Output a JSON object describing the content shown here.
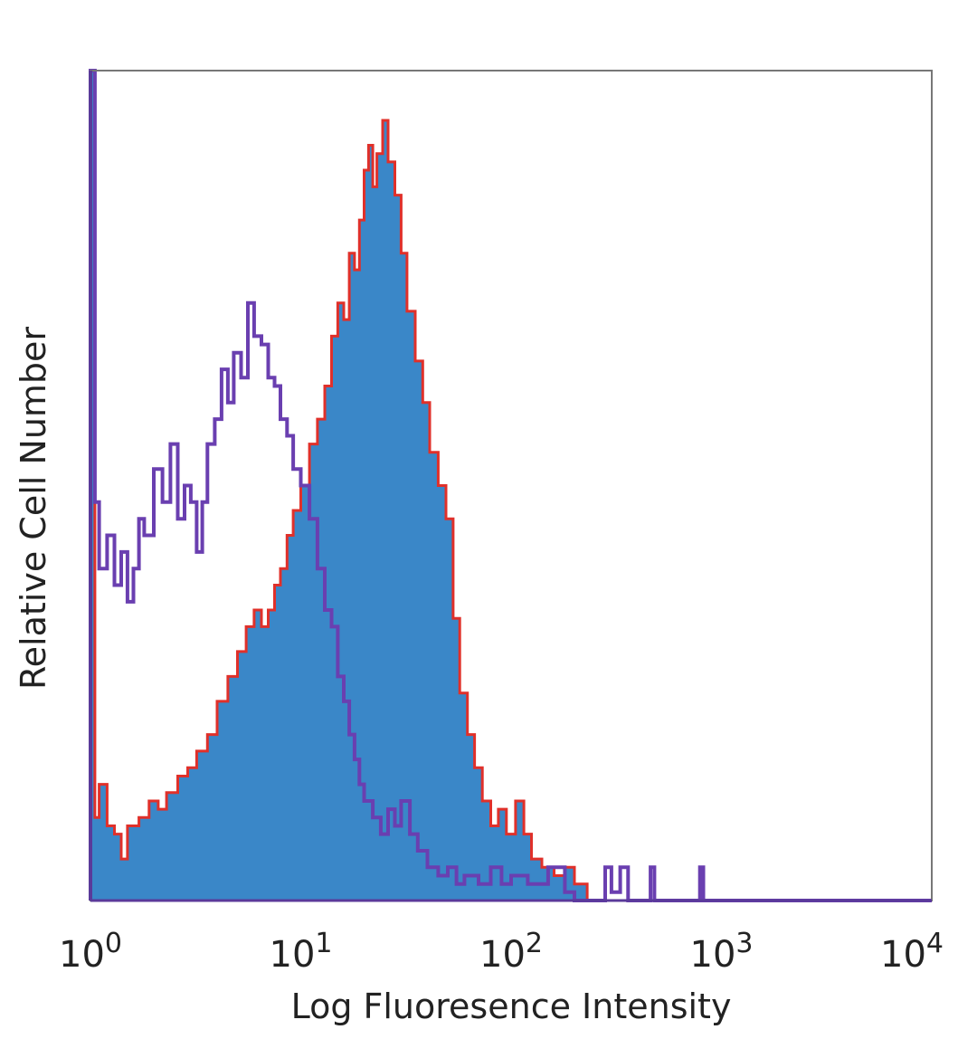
{
  "chart_data": {
    "type": "histogram",
    "title": "",
    "xlabel": "Log Fluoresence Intensity",
    "ylabel": "Relative Cell Number",
    "x_scale": "log",
    "xlim": [
      1,
      10000
    ],
    "ylim": [
      0,
      100
    ],
    "x_ticks": [
      {
        "value": 1,
        "base": "10",
        "exp": "0"
      },
      {
        "value": 10,
        "base": "10",
        "exp": "1"
      },
      {
        "value": 100,
        "base": "10",
        "exp": "2"
      },
      {
        "value": 1000,
        "base": "10",
        "exp": "3"
      },
      {
        "value": 10000,
        "base": "10",
        "exp": "4"
      }
    ],
    "grid": false,
    "legend": "none",
    "series": [
      {
        "style": "filled",
        "fill": "#3a87c8",
        "stroke": "#e0302a",
        "points": [
          [
            1.0,
            100
          ],
          [
            1.05,
            10
          ],
          [
            1.1,
            14
          ],
          [
            1.2,
            9
          ],
          [
            1.3,
            8
          ],
          [
            1.4,
            5
          ],
          [
            1.5,
            9
          ],
          [
            1.7,
            10
          ],
          [
            1.9,
            12
          ],
          [
            2.1,
            11
          ],
          [
            2.3,
            13
          ],
          [
            2.6,
            15
          ],
          [
            2.9,
            16
          ],
          [
            3.2,
            18
          ],
          [
            3.6,
            20
          ],
          [
            4.0,
            24
          ],
          [
            4.5,
            27
          ],
          [
            5.0,
            30
          ],
          [
            5.5,
            33
          ],
          [
            6.0,
            35
          ],
          [
            6.5,
            33
          ],
          [
            7.0,
            35
          ],
          [
            7.5,
            38
          ],
          [
            8.0,
            40
          ],
          [
            8.6,
            44
          ],
          [
            9.2,
            47
          ],
          [
            10.0,
            50
          ],
          [
            11.0,
            55
          ],
          [
            12.0,
            58
          ],
          [
            13.0,
            62
          ],
          [
            14.0,
            68
          ],
          [
            15.0,
            72
          ],
          [
            16.0,
            70
          ],
          [
            17.0,
            78
          ],
          [
            18.0,
            76
          ],
          [
            19.0,
            82
          ],
          [
            20.0,
            88
          ],
          [
            21.0,
            91
          ],
          [
            22.0,
            86
          ],
          [
            23.0,
            90
          ],
          [
            24.5,
            94
          ],
          [
            26.0,
            89
          ],
          [
            28.0,
            85
          ],
          [
            30.0,
            78
          ],
          [
            32.0,
            71
          ],
          [
            35.0,
            65
          ],
          [
            38.0,
            60
          ],
          [
            41.0,
            54
          ],
          [
            45.0,
            50
          ],
          [
            49.0,
            46
          ],
          [
            53.0,
            34
          ],
          [
            57.0,
            25
          ],
          [
            62.0,
            20
          ],
          [
            67.0,
            16
          ],
          [
            73.0,
            12
          ],
          [
            80.0,
            9
          ],
          [
            87.0,
            11
          ],
          [
            95.0,
            8
          ],
          [
            105.0,
            12
          ],
          [
            115.0,
            8
          ],
          [
            125.0,
            5
          ],
          [
            140.0,
            4
          ],
          [
            160.0,
            3
          ],
          [
            180.0,
            4
          ],
          [
            200.0,
            2
          ],
          [
            230.0,
            0
          ],
          [
            10000.0,
            0
          ]
        ]
      },
      {
        "style": "line",
        "fill": "none",
        "stroke": "#6a3fb0",
        "points": [
          [
            1.0,
            100
          ],
          [
            1.05,
            48
          ],
          [
            1.1,
            40
          ],
          [
            1.2,
            44
          ],
          [
            1.3,
            38
          ],
          [
            1.4,
            42
          ],
          [
            1.5,
            36
          ],
          [
            1.6,
            40
          ],
          [
            1.7,
            46
          ],
          [
            1.8,
            44
          ],
          [
            2.0,
            52
          ],
          [
            2.2,
            48
          ],
          [
            2.4,
            55
          ],
          [
            2.6,
            46
          ],
          [
            2.8,
            50
          ],
          [
            3.0,
            48
          ],
          [
            3.2,
            42
          ],
          [
            3.4,
            48
          ],
          [
            3.6,
            55
          ],
          [
            3.9,
            58
          ],
          [
            4.2,
            64
          ],
          [
            4.5,
            60
          ],
          [
            4.8,
            66
          ],
          [
            5.2,
            63
          ],
          [
            5.6,
            72
          ],
          [
            6.0,
            68
          ],
          [
            6.5,
            67
          ],
          [
            7.0,
            63
          ],
          [
            7.5,
            62
          ],
          [
            8.0,
            58
          ],
          [
            8.6,
            56
          ],
          [
            9.2,
            52
          ],
          [
            10.0,
            50
          ],
          [
            11.0,
            46
          ],
          [
            12.0,
            40
          ],
          [
            13.0,
            35
          ],
          [
            14.0,
            33
          ],
          [
            15.0,
            27
          ],
          [
            16.0,
            24
          ],
          [
            17.0,
            20
          ],
          [
            18.0,
            17
          ],
          [
            19.0,
            14
          ],
          [
            20.0,
            12
          ],
          [
            22.0,
            10
          ],
          [
            24.0,
            8
          ],
          [
            26.0,
            11
          ],
          [
            28.0,
            9
          ],
          [
            30.0,
            12
          ],
          [
            33.0,
            8
          ],
          [
            36.0,
            6
          ],
          [
            40.0,
            4
          ],
          [
            45.0,
            3
          ],
          [
            50.0,
            4
          ],
          [
            55.0,
            2
          ],
          [
            60.0,
            3
          ],
          [
            70.0,
            2
          ],
          [
            80.0,
            4
          ],
          [
            90.0,
            2
          ],
          [
            100.0,
            3
          ],
          [
            120.0,
            2
          ],
          [
            150.0,
            4
          ],
          [
            180.0,
            1
          ],
          [
            200.0,
            0
          ],
          [
            260.0,
            0
          ],
          [
            280.0,
            4
          ],
          [
            300.0,
            1
          ],
          [
            330.0,
            4
          ],
          [
            360.0,
            0
          ],
          [
            430.0,
            0
          ],
          [
            460.0,
            4
          ],
          [
            480.0,
            0
          ],
          [
            760.0,
            0
          ],
          [
            790.0,
            4
          ],
          [
            820.0,
            0
          ],
          [
            10000.0,
            0
          ]
        ]
      }
    ]
  },
  "colors": {
    "frame": "#777777",
    "baseline": "#5a3a9a",
    "fill_series": "#3a87c8",
    "fill_outline": "#e0302a",
    "open_series": "#6a3fb0"
  }
}
